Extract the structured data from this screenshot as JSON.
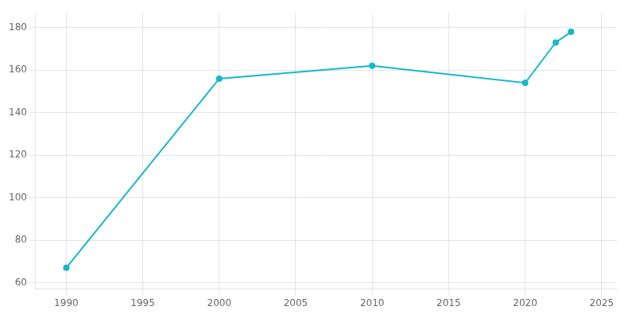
{
  "chart_data": {
    "type": "line",
    "x": [
      1990,
      2000,
      2010,
      2020,
      2022,
      2023
    ],
    "values": [
      67,
      156,
      162,
      154,
      173,
      178
    ],
    "color": "#17b8c8",
    "marker": "o",
    "xlim": [
      1988,
      2026
    ],
    "ylim": [
      57,
      187
    ],
    "xticks": [
      1990,
      1995,
      2000,
      2005,
      2010,
      2015,
      2020,
      2025
    ],
    "yticks": [
      60,
      80,
      100,
      120,
      140,
      160,
      180
    ],
    "grid": true
  }
}
